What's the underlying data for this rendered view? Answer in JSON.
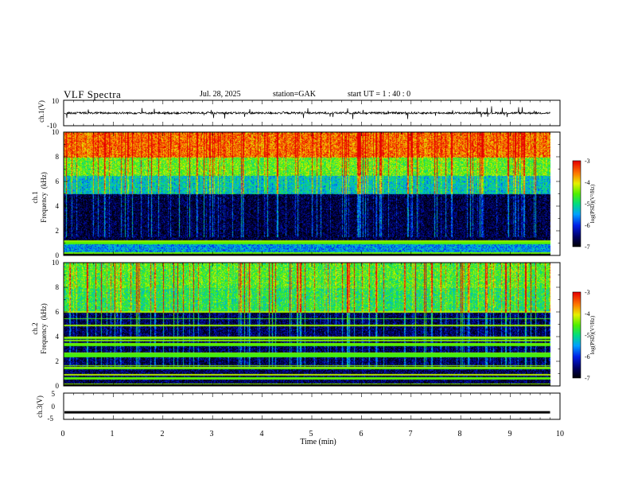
{
  "header": {
    "title": "VLF  Spectra",
    "date": "Jul.  28,  2025",
    "station": "station=GAK",
    "start_ut": "start  UT  =   1  : 40 : 0"
  },
  "colors": {
    "background": "#ffffff",
    "axis": "#000000"
  },
  "chart_data": [
    {
      "type": "line",
      "name": "ch1-waveform",
      "ylabel": "ch.1(V)",
      "ylim": [
        -10,
        10
      ],
      "yticks": [
        "10",
        "-10"
      ],
      "xlim": [
        0,
        10
      ],
      "trace_level": 0,
      "trace_spikes": "frequent impulsive spikes of roughly ±5 V around a level near 0 V, ending at ~9.8 min"
    },
    {
      "type": "heatmap",
      "name": "ch1-spectrogram",
      "ylabel": "ch.1\nFrequency  (kHz)",
      "ylim": [
        0,
        10
      ],
      "yticks": [
        "10",
        "8",
        "6",
        "4",
        "2",
        "0"
      ],
      "xlim": [
        0,
        10
      ],
      "data_end_min": 9.8,
      "colorbar": {
        "label": "log(PSD)(V²/Hz)",
        "ticks": [
          "-3",
          "-4",
          "-5",
          "-6",
          "-7"
        ],
        "range": [
          -7,
          -3
        ]
      },
      "bands": [
        {
          "from_khz": 0,
          "to_khz": 1.2,
          "level": -5.5,
          "note": "narrowband lines"
        },
        {
          "from_khz": 1.2,
          "to_khz": 5.0,
          "level": -6.7,
          "note": "quiet background"
        },
        {
          "from_khz": 5.0,
          "to_khz": 6.5,
          "level": -5.2,
          "note": "transition"
        },
        {
          "from_khz": 6.5,
          "to_khz": 8.0,
          "level": -4.5
        },
        {
          "from_khz": 8.0,
          "to_khz": 10,
          "level": -3.5,
          "note": "intense"
        }
      ]
    },
    {
      "type": "heatmap",
      "name": "ch2-spectrogram",
      "ylabel": "ch.2\nFrequency  (kHz)",
      "ylim": [
        0,
        10
      ],
      "yticks": [
        "10",
        "8",
        "6",
        "4",
        "2",
        "0"
      ],
      "xlim": [
        0,
        10
      ],
      "data_end_min": 9.8,
      "colorbar": {
        "label": "log(PSD)(V²/Hz)",
        "ticks": [
          "-3",
          "-4",
          "-5",
          "-6",
          "-7"
        ],
        "range": [
          -7,
          -3
        ]
      },
      "bands": [
        {
          "from_khz": 0,
          "to_khz": 6.0,
          "level": -6.6,
          "note": "quiet with many horizontal lines"
        },
        {
          "from_khz": 6.0,
          "to_khz": 8.0,
          "level": -4.8
        },
        {
          "from_khz": 8.0,
          "to_khz": 10,
          "level": -4.6
        }
      ]
    },
    {
      "type": "line",
      "name": "ch3-waveform",
      "ylabel": "ch.3(V)",
      "ylim": [
        -5,
        5
      ],
      "yticks": [
        "5",
        "0",
        "-5"
      ],
      "xlim": [
        0,
        10
      ],
      "trace_level": -2.3,
      "trace_spikes": "thick flat trace near -2.3 V"
    }
  ],
  "xaxis": {
    "label": "Time  (min)",
    "ticks": [
      "0",
      "1",
      "2",
      "3",
      "4",
      "5",
      "6",
      "7",
      "8",
      "9",
      "10"
    ]
  }
}
